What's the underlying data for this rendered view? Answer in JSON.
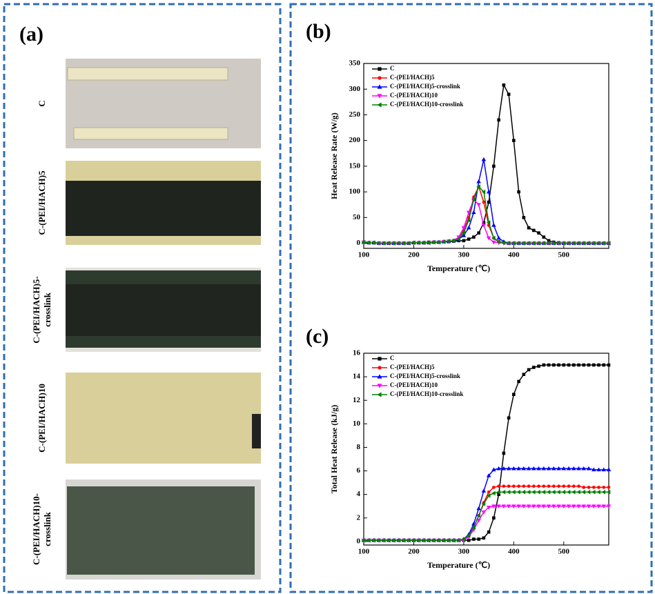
{
  "panel_a": {
    "label": "(a)",
    "samples": [
      {
        "lines": [
          "C"
        ]
      },
      {
        "lines": [
          "C-(PEI/HACH)5"
        ]
      },
      {
        "lines": [
          "C-(PEI/HACH)5-",
          "crosslink"
        ]
      },
      {
        "lines": [
          "C-(PEI/HACH)10"
        ]
      },
      {
        "lines": [
          "C-(PEI/HACH)10-",
          "crosslink"
        ]
      }
    ]
  },
  "chart_data": [
    {
      "type": "line",
      "label": "(b)",
      "xlabel": "Temperature (℃)",
      "ylabel": "Heat Release Rate (W/g)",
      "xlim": [
        100,
        590
      ],
      "ylim": [
        -10,
        350
      ],
      "xticks": [
        100,
        200,
        300,
        400,
        500
      ],
      "yticks": [
        0,
        50,
        100,
        150,
        200,
        250,
        300,
        350
      ],
      "legend": "upper-left",
      "x": [
        100,
        110,
        120,
        130,
        140,
        150,
        160,
        170,
        180,
        190,
        200,
        210,
        220,
        230,
        240,
        250,
        260,
        270,
        280,
        290,
        300,
        310,
        320,
        330,
        340,
        350,
        360,
        370,
        380,
        390,
        400,
        410,
        420,
        430,
        440,
        450,
        460,
        470,
        480,
        490,
        500,
        510,
        520,
        530,
        540,
        550,
        560,
        570,
        580,
        590
      ],
      "series": [
        {
          "name": "C",
          "color": "#000000",
          "marker": "square",
          "values": [
            2,
            1,
            1,
            0,
            0,
            0,
            0,
            0,
            0,
            0,
            1,
            1,
            1,
            2,
            2,
            2,
            3,
            3,
            4,
            5,
            5,
            8,
            12,
            20,
            40,
            80,
            150,
            240,
            308,
            290,
            200,
            100,
            50,
            30,
            25,
            20,
            12,
            5,
            2,
            1,
            0,
            0,
            0,
            0,
            0,
            0,
            0,
            0,
            0,
            0
          ]
        },
        {
          "name": "C-(PEI/HACH)5",
          "color": "#ff0000",
          "marker": "circle",
          "values": [
            2,
            1,
            1,
            0,
            0,
            0,
            0,
            0,
            0,
            0,
            1,
            1,
            1,
            1,
            2,
            2,
            3,
            4,
            5,
            10,
            25,
            50,
            90,
            110,
            80,
            35,
            10,
            3,
            1,
            0,
            0,
            0,
            0,
            0,
            0,
            0,
            0,
            0,
            0,
            0,
            0,
            0,
            0,
            0,
            0,
            0,
            0,
            0,
            0,
            0
          ]
        },
        {
          "name": "C-(PEI/HACH)5-crosslink",
          "color": "#0000ff",
          "marker": "triangle-up",
          "values": [
            2,
            1,
            1,
            0,
            0,
            0,
            0,
            0,
            0,
            0,
            1,
            1,
            1,
            1,
            2,
            2,
            3,
            4,
            5,
            8,
            15,
            30,
            60,
            120,
            163,
            100,
            35,
            10,
            3,
            0,
            0,
            0,
            0,
            0,
            0,
            0,
            0,
            0,
            0,
            0,
            0,
            0,
            0,
            0,
            0,
            0,
            0,
            0,
            0,
            0
          ]
        },
        {
          "name": "C-(PEI/HACH)10",
          "color": "#ff00ff",
          "marker": "triangle-down",
          "values": [
            2,
            1,
            1,
            0,
            0,
            0,
            0,
            0,
            0,
            0,
            1,
            1,
            1,
            1,
            2,
            2,
            3,
            4,
            5,
            12,
            30,
            60,
            85,
            75,
            35,
            10,
            2,
            1,
            0,
            0,
            0,
            0,
            0,
            0,
            0,
            0,
            0,
            0,
            0,
            0,
            0,
            0,
            0,
            0,
            0,
            0,
            0,
            0,
            0,
            0
          ]
        },
        {
          "name": "C-(PEI/HACH)10-crosslink",
          "color": "#008000",
          "marker": "triangle-left",
          "values": [
            2,
            1,
            1,
            0,
            0,
            0,
            0,
            0,
            0,
            0,
            1,
            1,
            1,
            1,
            2,
            2,
            3,
            4,
            5,
            8,
            20,
            45,
            85,
            110,
            100,
            40,
            10,
            3,
            1,
            0,
            0,
            0,
            0,
            0,
            0,
            0,
            0,
            0,
            0,
            0,
            0,
            0,
            0,
            0,
            0,
            0,
            0,
            0,
            0,
            0
          ]
        }
      ]
    },
    {
      "type": "line",
      "label": "(c)",
      "xlabel": "Temperature (℃)",
      "ylabel": "Total Heat Release (kJ/g)",
      "xlim": [
        100,
        590
      ],
      "ylim": [
        -0.3,
        16
      ],
      "xticks": [
        100,
        200,
        300,
        400,
        500
      ],
      "yticks": [
        0,
        2,
        4,
        6,
        8,
        10,
        12,
        14,
        16
      ],
      "legend": "upper-left",
      "x": [
        100,
        110,
        120,
        130,
        140,
        150,
        160,
        170,
        180,
        190,
        200,
        210,
        220,
        230,
        240,
        250,
        260,
        270,
        280,
        290,
        300,
        310,
        320,
        330,
        340,
        350,
        360,
        370,
        380,
        390,
        400,
        410,
        420,
        430,
        440,
        450,
        460,
        470,
        480,
        490,
        500,
        510,
        520,
        530,
        540,
        550,
        560,
        570,
        580,
        590
      ],
      "series": [
        {
          "name": "C",
          "color": "#000000",
          "marker": "square",
          "values": [
            0.1,
            0.1,
            0.1,
            0.1,
            0.1,
            0.1,
            0.1,
            0.1,
            0.1,
            0.1,
            0.1,
            0.1,
            0.1,
            0.1,
            0.1,
            0.1,
            0.1,
            0.1,
            0.1,
            0.1,
            0.1,
            0.1,
            0.2,
            0.2,
            0.3,
            0.8,
            2,
            4,
            7.5,
            10.5,
            12.5,
            13.6,
            14.2,
            14.6,
            14.8,
            14.9,
            15,
            15,
            15,
            15,
            15,
            15,
            15,
            15,
            15,
            15,
            15,
            15,
            15,
            15
          ]
        },
        {
          "name": "C-(PEI/HACH)5",
          "color": "#ff0000",
          "marker": "circle",
          "values": [
            0.1,
            0.1,
            0.1,
            0.1,
            0.1,
            0.1,
            0.1,
            0.1,
            0.1,
            0.1,
            0.1,
            0.1,
            0.1,
            0.1,
            0.1,
            0.1,
            0.1,
            0.1,
            0.1,
            0.1,
            0.2,
            0.5,
            1.2,
            2.2,
            3.3,
            4.2,
            4.6,
            4.7,
            4.7,
            4.7,
            4.7,
            4.7,
            4.7,
            4.7,
            4.7,
            4.7,
            4.7,
            4.7,
            4.7,
            4.7,
            4.7,
            4.7,
            4.7,
            4.7,
            4.6,
            4.6,
            4.6,
            4.6,
            4.6,
            4.6
          ]
        },
        {
          "name": "C-(PEI/HACH)5-crosslink",
          "color": "#0000ff",
          "marker": "triangle-up",
          "values": [
            0.1,
            0.1,
            0.1,
            0.1,
            0.1,
            0.1,
            0.1,
            0.1,
            0.1,
            0.1,
            0.1,
            0.1,
            0.1,
            0.1,
            0.1,
            0.1,
            0.1,
            0.1,
            0.1,
            0.1,
            0.2,
            0.6,
            1.5,
            2.8,
            4.3,
            5.6,
            6.1,
            6.2,
            6.2,
            6.2,
            6.2,
            6.2,
            6.2,
            6.2,
            6.2,
            6.2,
            6.2,
            6.2,
            6.2,
            6.2,
            6.2,
            6.2,
            6.2,
            6.2,
            6.2,
            6.2,
            6.1,
            6.1,
            6.1,
            6.1
          ]
        },
        {
          "name": "C-(PEI/HACH)10",
          "color": "#ff00ff",
          "marker": "triangle-down",
          "values": [
            0.1,
            0.1,
            0.1,
            0.1,
            0.1,
            0.1,
            0.1,
            0.1,
            0.1,
            0.1,
            0.1,
            0.1,
            0.1,
            0.1,
            0.1,
            0.1,
            0.1,
            0.1,
            0.1,
            0.1,
            0.1,
            0.4,
            1,
            1.8,
            2.5,
            2.9,
            3,
            3,
            3,
            3,
            3,
            3,
            3,
            3,
            3,
            3,
            3,
            3,
            3,
            3,
            3,
            3,
            3,
            3,
            3,
            3,
            3,
            3,
            3,
            3
          ]
        },
        {
          "name": "C-(PEI/HACH)10-crosslink",
          "color": "#008000",
          "marker": "triangle-left",
          "values": [
            0.1,
            0.1,
            0.1,
            0.1,
            0.1,
            0.1,
            0.1,
            0.1,
            0.1,
            0.1,
            0.1,
            0.1,
            0.1,
            0.1,
            0.1,
            0.1,
            0.1,
            0.1,
            0.1,
            0.1,
            0.2,
            0.5,
            1.2,
            2.2,
            3.2,
            3.9,
            4.1,
            4.2,
            4.2,
            4.2,
            4.2,
            4.2,
            4.2,
            4.2,
            4.2,
            4.2,
            4.2,
            4.2,
            4.2,
            4.2,
            4.2,
            4.2,
            4.2,
            4.2,
            4.2,
            4.2,
            4.2,
            4.2,
            4.2,
            4.2
          ]
        }
      ]
    }
  ]
}
